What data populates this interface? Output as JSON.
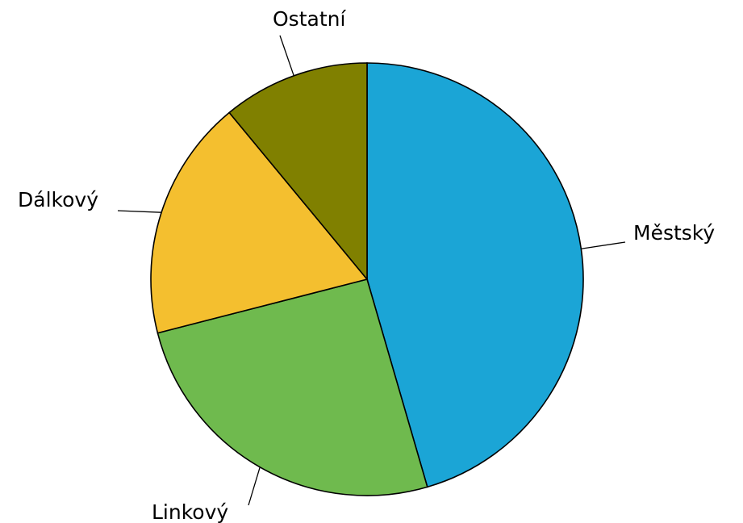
{
  "chart_data": {
    "type": "pie",
    "categories": [
      "Městský",
      "Linkový",
      "Dálkový",
      "Ostatní"
    ],
    "values": [
      45.5,
      25.5,
      18,
      11
    ],
    "colors": [
      "#1ba5d6",
      "#6fba4e",
      "#f4bf2f",
      "#808000"
    ],
    "start": "top, clockwise",
    "legend": "none"
  }
}
